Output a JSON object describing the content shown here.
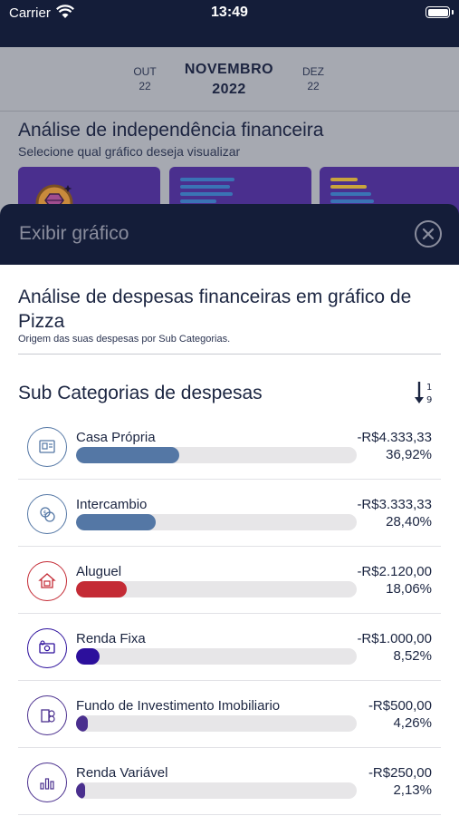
{
  "status_bar": {
    "carrier": "Carrier",
    "time": "13:49"
  },
  "month_selector": {
    "prev": {
      "month": "OUT",
      "year": "22"
    },
    "current": {
      "month": "NOVEMBRO",
      "year": "2022"
    },
    "next": {
      "month": "DEZ",
      "year": "22"
    }
  },
  "background": {
    "title": "Análise de independência financeira",
    "subtitle": "Selecione qual gráfico deseja visualizar"
  },
  "modal": {
    "title": "Exibir gráfico",
    "chart_title": "Análise de despesas financeiras em gráfico de Pizza",
    "chart_subtitle": "Origem das suas despesas por Sub Categorias.",
    "section_title": "Sub Categorias de despesas"
  },
  "colors": {
    "casa_propria": "#5477a5",
    "intercambio": "#5477a5",
    "aluguel": "#c42b35",
    "renda_fixa": "#2c0f9c",
    "fii": "#4a2f8e",
    "renda_variavel": "#4a2f8e"
  },
  "categories": [
    {
      "name": "Casa Própria",
      "amount": "-R$4.333,33",
      "percent": "36,92%",
      "fill": 0.3692,
      "color": "#5477a5",
      "icon": "house-document-icon"
    },
    {
      "name": "Intercambio",
      "amount": "-R$3.333,33",
      "percent": "28,40%",
      "fill": 0.284,
      "color": "#5477a5",
      "icon": "currency-exchange-icon"
    },
    {
      "name": "Aluguel",
      "amount": "-R$2.120,00",
      "percent": "18,06%",
      "fill": 0.1806,
      "color": "#c42b35",
      "icon": "house-rent-icon"
    },
    {
      "name": "Renda Fixa",
      "amount": "-R$1.000,00",
      "percent": "8,52%",
      "fill": 0.0852,
      "color": "#2c0f9c",
      "icon": "money-icon"
    },
    {
      "name": "Fundo de Investimento Imobiliario",
      "amount": "-R$500,00",
      "percent": "4,26%",
      "fill": 0.0426,
      "color": "#4a2f8e",
      "icon": "building-coins-icon"
    },
    {
      "name": "Renda Variável",
      "amount": "-R$250,00",
      "percent": "2,13%",
      "fill": 0.0213,
      "color": "#4a2f8e",
      "icon": "chart-bars-icon"
    }
  ]
}
